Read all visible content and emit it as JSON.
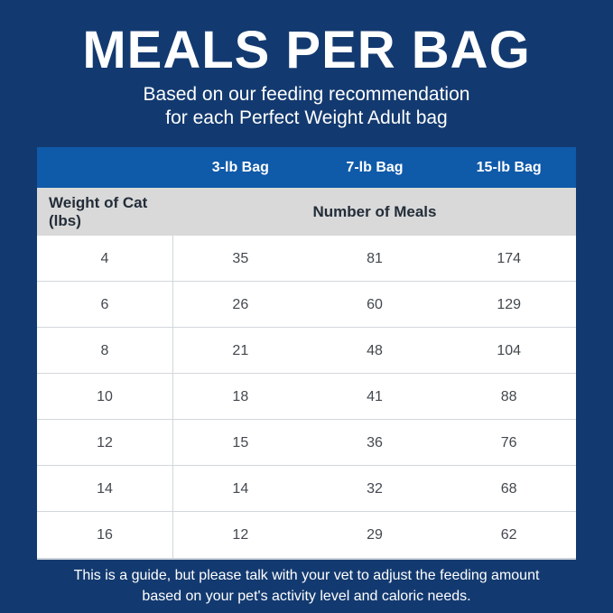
{
  "page": {
    "title": "MEALS PER BAG",
    "subtitle_line1": "Based on our feeding recommendation",
    "subtitle_line2": "for each Perfect Weight Adult bag",
    "footnote_line1": "This is a guide, but please talk with your vet to adjust the feeding amount",
    "footnote_line2": "based on your pet's activity level and caloric needs."
  },
  "table": {
    "bag_headers": [
      "3-lb Bag",
      "7-lb Bag",
      "15-lb Bag"
    ],
    "row_header": "Weight of Cat (lbs)",
    "group_header": "Number of Meals",
    "rows": [
      {
        "weight": "4",
        "meals": [
          "35",
          "81",
          "174"
        ]
      },
      {
        "weight": "6",
        "meals": [
          "26",
          "60",
          "129"
        ]
      },
      {
        "weight": "8",
        "meals": [
          "21",
          "48",
          "104"
        ]
      },
      {
        "weight": "10",
        "meals": [
          "18",
          "41",
          "88"
        ]
      },
      {
        "weight": "12",
        "meals": [
          "15",
          "36",
          "76"
        ]
      },
      {
        "weight": "14",
        "meals": [
          "14",
          "32",
          "68"
        ]
      },
      {
        "weight": "16",
        "meals": [
          "12",
          "29",
          "62"
        ]
      }
    ]
  },
  "colors": {
    "background_navy": "#133a70",
    "header_blue": "#0f5aa9",
    "subheader_gray": "#d9d9d9",
    "dark_text": "#232d38",
    "cell_text": "#43484e",
    "divider": "#d2d7dc",
    "white": "#ffffff"
  },
  "chart_data": {
    "type": "table",
    "title": "MEALS PER BAG",
    "subtitle": "Based on our feeding recommendation for each Perfect Weight Adult bag",
    "columns": [
      "Weight of Cat (lbs)",
      "3-lb Bag",
      "7-lb Bag",
      "15-lb Bag"
    ],
    "value_label": "Number of Meals",
    "rows": [
      [
        4,
        35,
        81,
        174
      ],
      [
        6,
        26,
        60,
        129
      ],
      [
        8,
        21,
        48,
        104
      ],
      [
        10,
        18,
        41,
        88
      ],
      [
        12,
        15,
        36,
        76
      ],
      [
        14,
        14,
        32,
        68
      ],
      [
        16,
        12,
        29,
        62
      ]
    ],
    "footnote": "This is a guide, but please talk with your vet to adjust the feeding amount based on your pet's activity level and caloric needs."
  }
}
